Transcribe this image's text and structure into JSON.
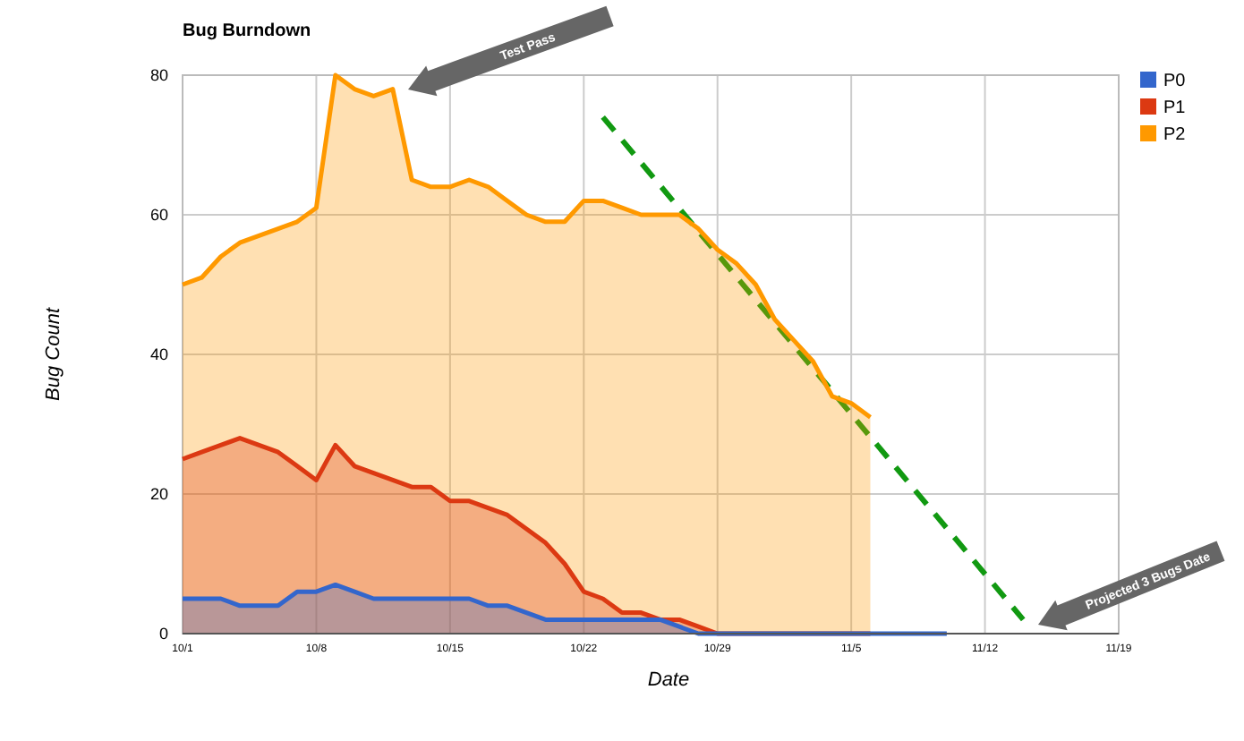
{
  "chart_data": {
    "type": "area",
    "title": "Bug Burndown",
    "xlabel": "Date",
    "ylabel": "Bug Count",
    "xlim": [
      "--10-01",
      "--11-19"
    ],
    "xticks": [
      {
        "value": "--10-01",
        "label": "10/1"
      },
      {
        "value": "--10-08",
        "label": "10/8"
      },
      {
        "value": "--10-15",
        "label": "10/15"
      },
      {
        "value": "--10-22",
        "label": "10/22"
      },
      {
        "value": "--10-29",
        "label": "10/29"
      },
      {
        "value": "--11-05",
        "label": "11/5"
      },
      {
        "value": "--11-12",
        "label": "11/12"
      },
      {
        "value": "--11-19",
        "label": "11/19"
      }
    ],
    "ylim": [
      0,
      80
    ],
    "yticks": [
      0,
      20,
      40,
      60,
      80
    ],
    "grid": true,
    "legend": "top right",
    "series": [
      {
        "name": "P0",
        "color": "#3366cc",
        "x": [
          "--10-01",
          "--10-02",
          "--10-03",
          "--10-04",
          "--10-05",
          "--10-06",
          "--10-07",
          "--10-08",
          "--10-09",
          "--10-10",
          "--10-11",
          "--10-12",
          "--10-13",
          "--10-14",
          "--10-15",
          "--10-16",
          "--10-17",
          "--10-18",
          "--10-19",
          "--10-20",
          "--10-21",
          "--10-22",
          "--10-23",
          "--10-24",
          "--10-25",
          "--10-26",
          "--10-27",
          "--10-28",
          "--10-29",
          "--10-30",
          "--10-31",
          "--11-01",
          "--11-02",
          "--11-03",
          "--11-04",
          "--11-05",
          "--11-06",
          "--11-07",
          "--11-08",
          "--11-09",
          "--11-10"
        ],
        "values": [
          5,
          5,
          5,
          4,
          4,
          4,
          6,
          6,
          7,
          6,
          5,
          5,
          5,
          5,
          5,
          5,
          4,
          4,
          3,
          2,
          2,
          2,
          2,
          2,
          2,
          2,
          1,
          0,
          0,
          0,
          0,
          0,
          0,
          0,
          0,
          0,
          0,
          0,
          0,
          0,
          0
        ]
      },
      {
        "name": "P1",
        "color": "#dc3912",
        "x": [
          "--10-01",
          "--10-02",
          "--10-03",
          "--10-04",
          "--10-05",
          "--10-06",
          "--10-07",
          "--10-08",
          "--10-09",
          "--10-10",
          "--10-11",
          "--10-12",
          "--10-13",
          "--10-14",
          "--10-15",
          "--10-16",
          "--10-17",
          "--10-18",
          "--10-19",
          "--10-20",
          "--10-21",
          "--10-22",
          "--10-23",
          "--10-24",
          "--10-25",
          "--10-26",
          "--10-27",
          "--10-28",
          "--10-29",
          "--10-30",
          "--10-31",
          "--11-01",
          "--11-02",
          "--11-03",
          "--11-04",
          "--11-05",
          "--11-06"
        ],
        "values": [
          25,
          26,
          27,
          28,
          27,
          26,
          24,
          22,
          27,
          24,
          23,
          22,
          21,
          21,
          19,
          19,
          18,
          17,
          15,
          13,
          10,
          6,
          5,
          3,
          3,
          2,
          2,
          1,
          0,
          0,
          0,
          0,
          0,
          0,
          0,
          0,
          0
        ]
      },
      {
        "name": "P2",
        "color": "#ff9900",
        "x": [
          "--10-01",
          "--10-02",
          "--10-03",
          "--10-04",
          "--10-05",
          "--10-06",
          "--10-07",
          "--10-08",
          "--10-09",
          "--10-10",
          "--10-11",
          "--10-12",
          "--10-13",
          "--10-14",
          "--10-15",
          "--10-16",
          "--10-17",
          "--10-18",
          "--10-19",
          "--10-20",
          "--10-21",
          "--10-22",
          "--10-23",
          "--10-24",
          "--10-25",
          "--10-26",
          "--10-27",
          "--10-28",
          "--10-29",
          "--10-30",
          "--10-31",
          "--11-01",
          "--11-02",
          "--11-03",
          "--11-04",
          "--11-05",
          "--11-06"
        ],
        "values": [
          50,
          51,
          54,
          56,
          57,
          58,
          59,
          61,
          80,
          78,
          77,
          78,
          65,
          64,
          64,
          65,
          64,
          62,
          60,
          59,
          59,
          62,
          62,
          61,
          60,
          60,
          60,
          58,
          55,
          53,
          50,
          45,
          42,
          39,
          34,
          33,
          31
        ]
      },
      {
        "type": "line",
        "color": "#119911",
        "line_style": "dashed",
        "x": [
          "--10-23",
          "--11-14"
        ],
        "values": [
          74,
          2
        ]
      }
    ],
    "annotations": [
      "Test Pass",
      "Projected 3 Bugs Date"
    ]
  }
}
